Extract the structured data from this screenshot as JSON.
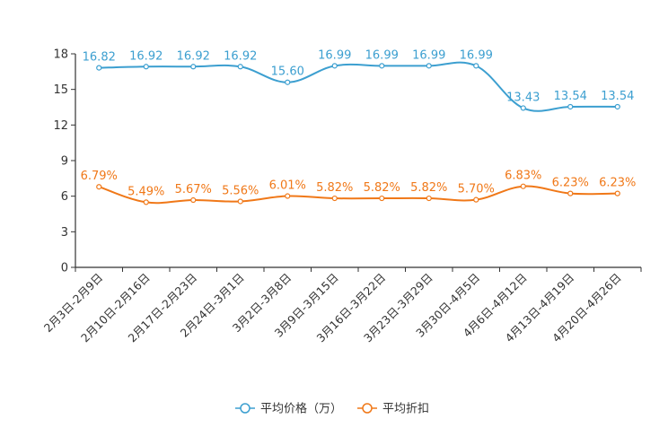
{
  "chart_data": {
    "type": "line",
    "categories": [
      "2月3日-2月9日",
      "2月10日-2月16日",
      "2月17日-2月23日",
      "2月24日-3月1日",
      "3月2日-3月8日",
      "3月9日-3月15日",
      "3月16日-3月22日",
      "3月23日-3月29日",
      "3月30日-4月5日",
      "4月6日-4月12日",
      "4月13日-4月19日",
      "4月20日-4月26日"
    ],
    "ylim": [
      0,
      18
    ],
    "yticks": [
      0,
      3,
      6,
      9,
      12,
      15,
      18
    ],
    "grid": false,
    "legend_position": "bottom-center",
    "series": [
      {
        "name": "平均价格（万）",
        "color": "#3c9fd0",
        "values": [
          16.82,
          16.92,
          16.92,
          16.92,
          15.6,
          16.99,
          16.99,
          16.99,
          16.99,
          13.43,
          13.54,
          13.54
        ],
        "labels": [
          "16.82",
          "16.92",
          "16.92",
          "16.92",
          "15.60",
          "16.99",
          "16.99",
          "16.99",
          "16.99",
          "13.43",
          "13.54",
          "13.54"
        ]
      },
      {
        "name": "平均折扣",
        "color": "#f07818",
        "values": [
          6.79,
          5.49,
          5.67,
          5.56,
          6.01,
          5.82,
          5.82,
          5.82,
          5.7,
          6.83,
          6.23,
          6.23
        ],
        "labels": [
          "6.79%",
          "5.49%",
          "5.67%",
          "5.56%",
          "6.01%",
          "5.82%",
          "5.82%",
          "5.82%",
          "5.70%",
          "6.83%",
          "6.23%",
          "6.23%"
        ]
      }
    ]
  }
}
